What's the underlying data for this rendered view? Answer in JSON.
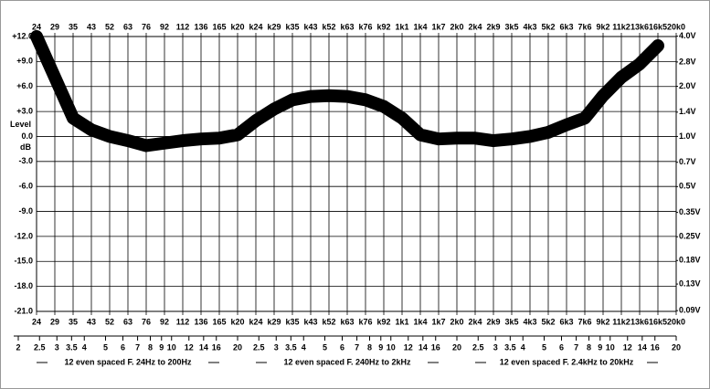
{
  "chart_data": {
    "type": "line",
    "categories": [
      "24",
      "29",
      "35",
      "43",
      "52",
      "63",
      "76",
      "92",
      "112",
      "136",
      "165",
      "k20",
      "k24",
      "k29",
      "k35",
      "k43",
      "k52",
      "k63",
      "k76",
      "k92",
      "1k1",
      "1k4",
      "1k7",
      "2k0",
      "2k4",
      "2k9",
      "3k5",
      "4k3",
      "5k2",
      "6k3",
      "7k6",
      "9k2",
      "11k2",
      "13k6",
      "16k5",
      "20k0"
    ],
    "series": [
      {
        "color": "#000000",
        "values": [
          12,
          7.1,
          2.2,
          0.8,
          0,
          -0.5,
          -1.1,
          -0.8,
          -0.5,
          -0.3,
          -0.2,
          0.2,
          1.9,
          3.3,
          4.4,
          4.8,
          4.9,
          4.8,
          4.4,
          3.6,
          2.2,
          0.2,
          -0.3,
          -0.2,
          -0.2,
          -0.5,
          -0.3,
          0,
          0.5,
          1.4,
          2.2,
          4.9,
          7.1,
          8.7,
          10.9,
          null
        ]
      }
    ],
    "ylim": [
      -21,
      12
    ],
    "yticks": [
      {
        "value": 12,
        "label": "+12.0"
      },
      {
        "value": 9,
        "label": "+9.0"
      },
      {
        "value": 6,
        "label": "+6.0"
      },
      {
        "value": 3,
        "label": "+3.0"
      },
      {
        "value": 0,
        "label": "0.0"
      },
      {
        "value": -3,
        "label": "-3.0"
      },
      {
        "value": -6,
        "label": "-6.0"
      },
      {
        "value": -9,
        "label": "-9.0"
      },
      {
        "value": -12,
        "label": "-12.0"
      },
      {
        "value": -15,
        "label": "-15.0"
      },
      {
        "value": -18,
        "label": "-18.0"
      },
      {
        "value": -21,
        "label": "-21.0"
      }
    ],
    "y_label_top": "Level",
    "y_label_bottom": "dB",
    "y2scale": "log",
    "y2lim": [
      0.0891,
      3.981
    ],
    "y2ticks": [
      {
        "value": 4.0,
        "label": "4.0V"
      },
      {
        "value": 2.8,
        "label": "2.8V"
      },
      {
        "value": 2.0,
        "label": "2.0V"
      },
      {
        "value": 1.4,
        "label": "1.4V"
      },
      {
        "value": 1.0,
        "label": "1.0V"
      },
      {
        "value": 0.7,
        "label": "0.7V"
      },
      {
        "value": 0.5,
        "label": "0.5V"
      },
      {
        "value": 0.35,
        "label": "0.35V"
      },
      {
        "value": 0.25,
        "label": "0.25V"
      },
      {
        "value": 0.18,
        "label": "0.18V"
      },
      {
        "value": 0.13,
        "label": "0.13V"
      },
      {
        "value": 0.09,
        "label": "0.09V"
      }
    ],
    "grid": true,
    "x2_groups": [
      {
        "ticks": [
          2,
          2.5,
          3,
          3.5,
          4,
          5,
          6,
          7,
          8,
          9,
          10,
          12,
          14,
          16,
          20
        ],
        "caption": "12 even spaced  F. 24Hz to 200Hz"
      },
      {
        "ticks": [
          2.5,
          3,
          3.5,
          4,
          5,
          6,
          7,
          8,
          9,
          10,
          12,
          14,
          16,
          20
        ],
        "caption": "12 even spaced  F. 240Hz to 2kHz"
      },
      {
        "ticks": [
          2.5,
          3,
          3.5,
          4,
          5,
          6,
          7,
          8,
          9,
          10,
          12,
          14,
          16,
          20
        ],
        "caption": "12 even spaced  F. 2.4kHz to 20kHz"
      }
    ]
  }
}
